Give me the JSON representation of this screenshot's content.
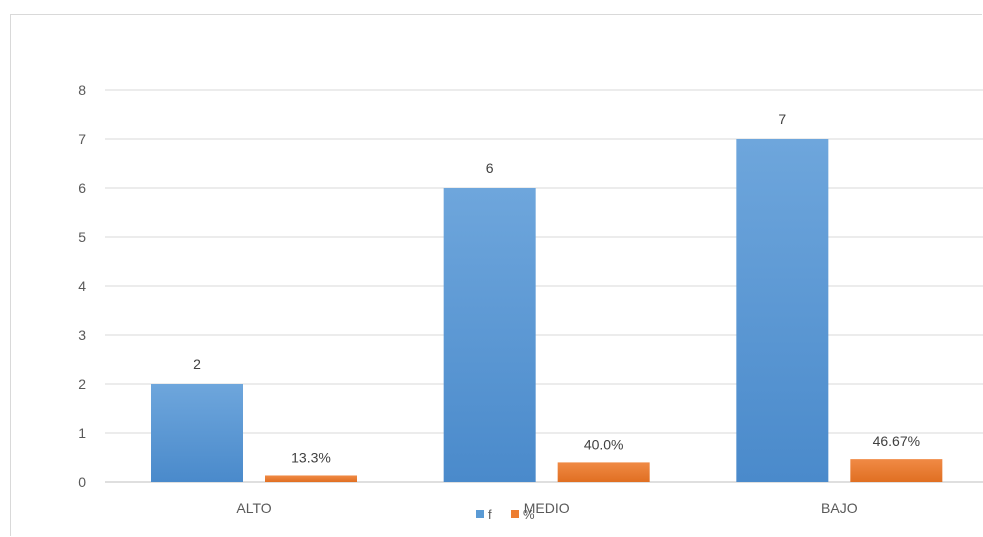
{
  "chart_data": {
    "type": "bar",
    "categories": [
      "ALTO",
      "MEDIO",
      "BAJO"
    ],
    "series": [
      {
        "name": "f",
        "values": [
          2,
          6,
          7
        ],
        "labels": [
          "2",
          "6",
          "7"
        ],
        "color": "#5b9bd5"
      },
      {
        "name": "%",
        "values": [
          0.133,
          0.4,
          0.4667
        ],
        "labels": [
          "13.3%",
          "40.0%",
          "46.67%"
        ],
        "color": "#ed7d31"
      }
    ],
    "yticks": [
      "0",
      "1",
      "2",
      "3",
      "4",
      "5",
      "6",
      "7",
      "8"
    ],
    "ylim": [
      0,
      8
    ],
    "grid": true,
    "legend": "bottom",
    "title": "",
    "xlabel": "",
    "ylabel": ""
  }
}
